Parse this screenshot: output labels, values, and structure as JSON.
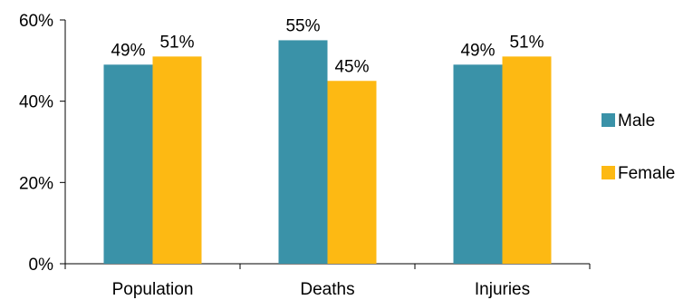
{
  "chart_data": {
    "type": "bar",
    "categories": [
      "Population",
      "Deaths",
      "Injuries"
    ],
    "series": [
      {
        "name": "Male",
        "values": [
          49,
          55,
          49
        ],
        "labels": [
          "49%",
          "55%",
          "49%"
        ],
        "color": "#3a92a8"
      },
      {
        "name": "Female",
        "values": [
          51,
          45,
          51
        ],
        "labels": [
          "51%",
          "45%",
          "51%"
        ],
        "color": "#fdb913"
      }
    ],
    "ylim": [
      0,
      60
    ],
    "yticks": [
      0,
      20,
      40,
      60
    ],
    "ytick_labels": [
      "0%",
      "20%",
      "40%",
      "60%"
    ],
    "title": "",
    "xlabel": "",
    "ylabel": "",
    "grid": false,
    "legend_position": "right"
  }
}
